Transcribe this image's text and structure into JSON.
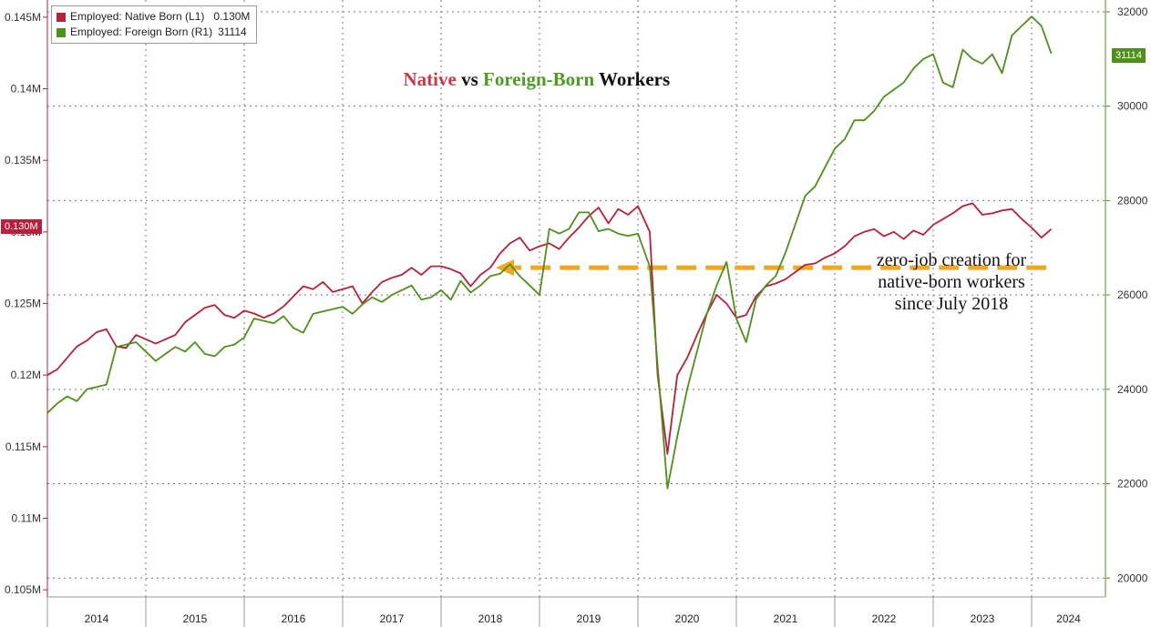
{
  "title": {
    "part1": "Native",
    "part2": " vs ",
    "part3": "Foreign-Born",
    "part4": " Workers"
  },
  "legend": [
    {
      "label": "Employed: Native Born (L1)",
      "value": "0.130M",
      "color": "#b5203a"
    },
    {
      "label": "Employed: Foreign Born (R1)",
      "value": "31114",
      "color": "#4f8f1b"
    }
  ],
  "annotation": [
    "zero-job creation for",
    "native-born workers",
    "since July 2018"
  ],
  "last_value_tags": {
    "left": "0.130M",
    "right": "31114"
  },
  "colors": {
    "native": "#b5203a",
    "foreign": "#4f8f1b",
    "arrow": "#f0a81e",
    "native_title": "#c43a4a",
    "foreign_title": "#4f9a26"
  },
  "chart_data": {
    "type": "line",
    "x_ticks": [
      "2014",
      "2015",
      "2016",
      "2017",
      "2018",
      "2019",
      "2020",
      "2021",
      "2022",
      "2023",
      "2024"
    ],
    "left_axis": {
      "ticks": [
        "0.105M",
        "0.11M",
        "0.115M",
        "0.12M",
        "0.125M",
        "0.13M",
        "0.135M",
        "0.14M",
        "0.145M"
      ],
      "ylim": [
        0.1045,
        0.1462
      ]
    },
    "right_axis": {
      "ticks": [
        "20000",
        "22000",
        "24000",
        "26000",
        "28000",
        "30000",
        "32000"
      ],
      "ylim": [
        19600,
        32250
      ]
    },
    "grid": true,
    "legend_position": "top-left",
    "x_range": [
      2014.0,
      2024.75
    ],
    "series": [
      {
        "name": "Employed: Native Born (L1)",
        "axis": "left",
        "color": "#b5203a",
        "x": [
          2014.0,
          2014.1,
          2014.2,
          2014.3,
          2014.4,
          2014.5,
          2014.6,
          2014.7,
          2014.8,
          2014.9,
          2015.0,
          2015.1,
          2015.2,
          2015.3,
          2015.4,
          2015.5,
          2015.6,
          2015.7,
          2015.8,
          2015.9,
          2016.0,
          2016.1,
          2016.2,
          2016.3,
          2016.4,
          2016.5,
          2016.6,
          2016.7,
          2016.8,
          2016.9,
          2017.0,
          2017.1,
          2017.2,
          2017.3,
          2017.4,
          2017.5,
          2017.6,
          2017.7,
          2017.8,
          2017.9,
          2018.0,
          2018.1,
          2018.2,
          2018.3,
          2018.4,
          2018.5,
          2018.6,
          2018.7,
          2018.8,
          2018.9,
          2019.0,
          2019.1,
          2019.2,
          2019.3,
          2019.4,
          2019.5,
          2019.6,
          2019.7,
          2019.8,
          2019.9,
          2020.0,
          2020.12,
          2020.2,
          2020.3,
          2020.4,
          2020.5,
          2020.6,
          2020.7,
          2020.8,
          2020.9,
          2021.0,
          2021.1,
          2021.2,
          2021.3,
          2021.4,
          2021.5,
          2021.6,
          2021.7,
          2021.8,
          2021.9,
          2022.0,
          2022.1,
          2022.2,
          2022.3,
          2022.4,
          2022.5,
          2022.6,
          2022.7,
          2022.8,
          2022.9,
          2023.0,
          2023.1,
          2023.2,
          2023.3,
          2023.4,
          2023.5,
          2023.6,
          2023.7,
          2023.8,
          2023.9,
          2024.0,
          2024.1,
          2024.2
        ],
        "values": [
          0.12,
          0.1204,
          0.1212,
          0.122,
          0.1224,
          0.123,
          0.1232,
          0.122,
          0.1219,
          0.1228,
          0.1225,
          0.1222,
          0.1225,
          0.1228,
          0.1237,
          0.1242,
          0.1247,
          0.1249,
          0.1242,
          0.124,
          0.1245,
          0.1243,
          0.124,
          0.1243,
          0.1248,
          0.1255,
          0.1262,
          0.126,
          0.1265,
          0.1258,
          0.126,
          0.1262,
          0.125,
          0.1258,
          0.1265,
          0.1268,
          0.127,
          0.1275,
          0.127,
          0.1276,
          0.1276,
          0.1274,
          0.1271,
          0.1262,
          0.127,
          0.1275,
          0.1285,
          0.1292,
          0.1296,
          0.1287,
          0.129,
          0.1292,
          0.1288,
          0.1296,
          0.1303,
          0.1311,
          0.1317,
          0.1306,
          0.1316,
          0.1312,
          0.1318,
          0.13,
          0.12,
          0.1145,
          0.12,
          0.1212,
          0.1228,
          0.1243,
          0.1256,
          0.125,
          0.124,
          0.1242,
          0.1255,
          0.1262,
          0.1264,
          0.1267,
          0.1272,
          0.1277,
          0.1278,
          0.1282,
          0.1285,
          0.129,
          0.1297,
          0.13,
          0.1302,
          0.1297,
          0.13,
          0.1295,
          0.1301,
          0.1298,
          0.1305,
          0.1309,
          0.1313,
          0.1318,
          0.132,
          0.1312,
          0.1313,
          0.1315,
          0.1316,
          0.1309,
          0.1303,
          0.1296,
          0.1302
        ]
      },
      {
        "name": "Employed: Foreign Born (R1)",
        "axis": "right",
        "color": "#4f8f1b",
        "x": [
          2014.0,
          2014.1,
          2014.2,
          2014.3,
          2014.4,
          2014.5,
          2014.6,
          2014.7,
          2014.8,
          2014.9,
          2015.0,
          2015.1,
          2015.2,
          2015.3,
          2015.4,
          2015.5,
          2015.6,
          2015.7,
          2015.8,
          2015.9,
          2016.0,
          2016.1,
          2016.2,
          2016.3,
          2016.4,
          2016.5,
          2016.6,
          2016.7,
          2016.8,
          2016.9,
          2017.0,
          2017.1,
          2017.2,
          2017.3,
          2017.4,
          2017.5,
          2017.6,
          2017.7,
          2017.8,
          2017.9,
          2018.0,
          2018.1,
          2018.2,
          2018.3,
          2018.4,
          2018.5,
          2018.6,
          2018.7,
          2018.8,
          2018.9,
          2019.0,
          2019.1,
          2019.2,
          2019.3,
          2019.4,
          2019.5,
          2019.6,
          2019.7,
          2019.8,
          2019.9,
          2020.0,
          2020.12,
          2020.3,
          2020.4,
          2020.5,
          2020.6,
          2020.7,
          2020.8,
          2020.9,
          2021.0,
          2021.1,
          2021.2,
          2021.3,
          2021.4,
          2021.5,
          2021.6,
          2021.7,
          2021.8,
          2021.9,
          2022.0,
          2022.1,
          2022.2,
          2022.3,
          2022.4,
          2022.5,
          2022.6,
          2022.7,
          2022.8,
          2022.9,
          2023.0,
          2023.1,
          2023.2,
          2023.3,
          2023.4,
          2023.5,
          2023.6,
          2023.7,
          2023.8,
          2023.9,
          2024.0,
          2024.1,
          2024.2
        ],
        "values": [
          23500,
          23700,
          23850,
          23750,
          24000,
          24050,
          24100,
          24900,
          24950,
          25000,
          24800,
          24600,
          24750,
          24900,
          24800,
          25000,
          24750,
          24700,
          24900,
          24950,
          25100,
          25500,
          25450,
          25400,
          25550,
          25300,
          25200,
          25600,
          25650,
          25700,
          25750,
          25600,
          25800,
          25950,
          25850,
          26000,
          26100,
          26200,
          25900,
          25950,
          26100,
          25900,
          26300,
          26050,
          26200,
          26400,
          26450,
          26650,
          26400,
          26200,
          26000,
          27400,
          27300,
          27400,
          27750,
          27750,
          27350,
          27400,
          27300,
          27250,
          27300,
          26600,
          21900,
          23000,
          24000,
          24800,
          25600,
          26200,
          26700,
          25500,
          25000,
          25900,
          26200,
          26400,
          26900,
          27500,
          28100,
          28300,
          28700,
          29100,
          29300,
          29700,
          29700,
          29900,
          30200,
          30350,
          30500,
          30800,
          31000,
          31100,
          30500,
          30400,
          31200,
          31000,
          30900,
          31100,
          30700,
          31500,
          31700,
          31900,
          31700,
          31114
        ]
      }
    ]
  }
}
